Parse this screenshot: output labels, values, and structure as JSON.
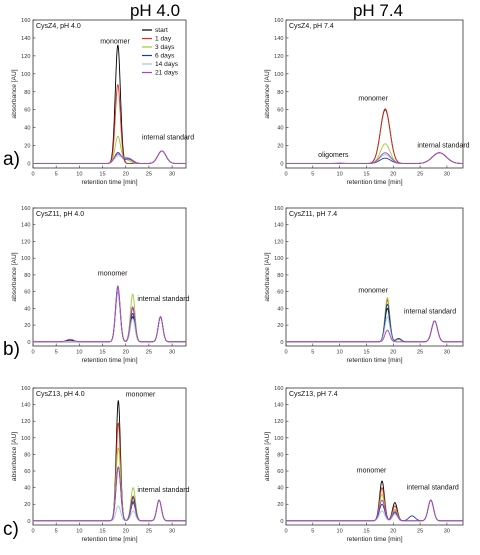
{
  "figure": {
    "column_headers": [
      "pH 4.0",
      "pH 7.4"
    ],
    "row_labels": [
      "a)",
      "b)",
      "c)"
    ]
  },
  "legend": {
    "entries": [
      {
        "name": "start",
        "color": "#000000"
      },
      {
        "name": "1 day",
        "color": "#e03020"
      },
      {
        "name": "3 days",
        "color": "#9acd32"
      },
      {
        "name": "6 days",
        "color": "#1e3a9a"
      },
      {
        "name": "14 days",
        "color": "#9fc5e8"
      },
      {
        "name": "21 days",
        "color": "#b040c0"
      }
    ]
  },
  "chart_data": [
    {
      "type": "line",
      "title": "CysZ4, pH 4.0",
      "xlabel": "retention time [min]",
      "ylabel": "absorbance [AU]",
      "xlim": [
        0,
        33
      ],
      "ylim": [
        -5,
        160
      ],
      "xticks": [
        0,
        5,
        10,
        15,
        20,
        25,
        30
      ],
      "yticks": [
        0,
        20,
        40,
        60,
        80,
        100,
        120,
        140,
        160
      ],
      "legend_position": "top-right",
      "grid": false,
      "annotations": [
        {
          "text": "monomer",
          "x": 14.5,
          "y": 134
        },
        {
          "text": "internal standard",
          "x": 23.5,
          "y": 27
        }
      ],
      "series": [
        {
          "name": "start",
          "peaks": [
            {
              "center": 18.3,
              "height": 132,
              "width": 0.55
            },
            {
              "center": 27.8,
              "height": 14,
              "width": 0.9
            }
          ]
        },
        {
          "name": "1 day",
          "peaks": [
            {
              "center": 18.3,
              "height": 88,
              "width": 0.55
            },
            {
              "center": 27.8,
              "height": 14,
              "width": 0.9
            }
          ]
        },
        {
          "name": "3 days",
          "peaks": [
            {
              "center": 18.3,
              "height": 30,
              "width": 0.6
            },
            {
              "center": 20.2,
              "height": 4,
              "width": 0.8
            },
            {
              "center": 27.8,
              "height": 14,
              "width": 0.9
            }
          ]
        },
        {
          "name": "6 days",
          "peaks": [
            {
              "center": 18.3,
              "height": 12,
              "width": 0.7
            },
            {
              "center": 20.5,
              "height": 5,
              "width": 0.9
            },
            {
              "center": 27.8,
              "height": 14,
              "width": 0.9
            }
          ]
        },
        {
          "name": "14 days",
          "peaks": [
            {
              "center": 18.3,
              "height": 8,
              "width": 0.8
            },
            {
              "center": 20.5,
              "height": 6,
              "width": 1.0
            },
            {
              "center": 27.8,
              "height": 14,
              "width": 0.9
            }
          ]
        },
        {
          "name": "21 days",
          "peaks": [
            {
              "center": 18.3,
              "height": 10,
              "width": 0.8
            },
            {
              "center": 20.5,
              "height": 6,
              "width": 1.0
            },
            {
              "center": 27.8,
              "height": 14,
              "width": 0.9
            }
          ]
        }
      ]
    },
    {
      "type": "line",
      "title": "CysZ4, pH 7.4",
      "xlabel": "retention time [min]",
      "ylabel": "absorbance [AU]",
      "xlim": [
        0,
        33
      ],
      "ylim": [
        -5,
        160
      ],
      "xticks": [
        0,
        5,
        10,
        15,
        20,
        25,
        30
      ],
      "yticks": [
        0,
        20,
        40,
        60,
        80,
        100,
        120,
        140,
        160
      ],
      "grid": false,
      "annotations": [
        {
          "text": "oligomers",
          "x": 6.0,
          "y": 7
        },
        {
          "text": "monomer",
          "x": 13.5,
          "y": 70
        },
        {
          "text": "internal standard",
          "x": 24.5,
          "y": 18
        }
      ],
      "series": [
        {
          "name": "start",
          "peaks": [
            {
              "center": 18.5,
              "height": 60,
              "width": 0.9
            },
            {
              "center": 28.6,
              "height": 12,
              "width": 1.3
            }
          ]
        },
        {
          "name": "1 day",
          "peaks": [
            {
              "center": 18.5,
              "height": 61,
              "width": 0.9
            },
            {
              "center": 28.6,
              "height": 12,
              "width": 1.3
            }
          ]
        },
        {
          "name": "3 days",
          "peaks": [
            {
              "center": 18.5,
              "height": 22,
              "width": 0.9
            },
            {
              "center": 28.6,
              "height": 12,
              "width": 1.3
            }
          ]
        },
        {
          "name": "6 days",
          "peaks": [
            {
              "center": 18.5,
              "height": 6,
              "width": 1.0
            },
            {
              "center": 28.6,
              "height": 12,
              "width": 1.3
            }
          ]
        },
        {
          "name": "14 days",
          "peaks": [
            {
              "center": 10.0,
              "height": 1,
              "width": 0.8
            },
            {
              "center": 18.5,
              "height": 10,
              "width": 1.0
            },
            {
              "center": 28.6,
              "height": 12,
              "width": 1.3
            }
          ]
        },
        {
          "name": "21 days",
          "peaks": [
            {
              "center": 18.5,
              "height": 12,
              "width": 1.0
            },
            {
              "center": 28.6,
              "height": 12,
              "width": 1.3
            }
          ]
        }
      ]
    },
    {
      "type": "line",
      "title": "CysZ11, pH 4.0",
      "xlabel": "retention time [min]",
      "ylabel": "absorbance [AU]",
      "xlim": [
        0,
        33
      ],
      "ylim": [
        -5,
        160
      ],
      "xticks": [
        0,
        5,
        10,
        15,
        20,
        25,
        30
      ],
      "yticks": [
        0,
        20,
        40,
        60,
        80,
        100,
        120,
        140,
        160
      ],
      "grid": false,
      "annotations": [
        {
          "text": "monomer",
          "x": 14.0,
          "y": 79
        },
        {
          "text": "internal standard",
          "x": 22.5,
          "y": 49
        }
      ],
      "series": [
        {
          "name": "start",
          "peaks": [
            {
              "center": 8.0,
              "height": 2,
              "width": 0.8
            },
            {
              "center": 18.3,
              "height": 63,
              "width": 0.5
            },
            {
              "center": 21.5,
              "height": 30,
              "width": 0.5
            },
            {
              "center": 27.5,
              "height": 30,
              "width": 0.5
            }
          ]
        },
        {
          "name": "1 day",
          "peaks": [
            {
              "center": 18.3,
              "height": 65,
              "width": 0.5
            },
            {
              "center": 21.5,
              "height": 40,
              "width": 0.5
            },
            {
              "center": 27.5,
              "height": 30,
              "width": 0.5
            }
          ]
        },
        {
          "name": "3 days",
          "peaks": [
            {
              "center": 18.3,
              "height": 66,
              "width": 0.5
            },
            {
              "center": 21.5,
              "height": 57,
              "width": 0.5
            },
            {
              "center": 27.5,
              "height": 30,
              "width": 0.5
            }
          ]
        },
        {
          "name": "6 days",
          "peaks": [
            {
              "center": 18.3,
              "height": 60,
              "width": 0.5
            },
            {
              "center": 21.5,
              "height": 34,
              "width": 0.5
            },
            {
              "center": 27.5,
              "height": 30,
              "width": 0.5
            }
          ]
        },
        {
          "name": "14 days",
          "peaks": [
            {
              "center": 18.3,
              "height": 62,
              "width": 0.5
            },
            {
              "center": 21.5,
              "height": 28,
              "width": 0.5
            },
            {
              "center": 27.5,
              "height": 30,
              "width": 0.5
            }
          ]
        },
        {
          "name": "21 days",
          "peaks": [
            {
              "center": 8.0,
              "height": 3,
              "width": 0.8
            },
            {
              "center": 18.3,
              "height": 67,
              "width": 0.5
            },
            {
              "center": 21.5,
              "height": 42,
              "width": 0.5
            },
            {
              "center": 27.5,
              "height": 30,
              "width": 0.5
            }
          ]
        }
      ]
    },
    {
      "type": "line",
      "title": "CysZ11, pH 7.4",
      "xlabel": "retention time [min]",
      "ylabel": "absorbance [AU]",
      "xlim": [
        0,
        33
      ],
      "ylim": [
        -5,
        160
      ],
      "xticks": [
        0,
        5,
        10,
        15,
        20,
        25,
        30
      ],
      "yticks": [
        0,
        20,
        40,
        60,
        80,
        100,
        120,
        140,
        160
      ],
      "grid": false,
      "annotations": [
        {
          "text": "monomer",
          "x": 13.5,
          "y": 59
        },
        {
          "text": "internal standard",
          "x": 22.0,
          "y": 34
        }
      ],
      "series": [
        {
          "name": "start",
          "peaks": [
            {
              "center": 18.9,
              "height": 40,
              "width": 0.45
            },
            {
              "center": 21.0,
              "height": 3,
              "width": 0.5
            },
            {
              "center": 27.7,
              "height": 25,
              "width": 0.55
            }
          ]
        },
        {
          "name": "1 day",
          "peaks": [
            {
              "center": 18.9,
              "height": 50,
              "width": 0.45
            },
            {
              "center": 21.0,
              "height": 3,
              "width": 0.5
            },
            {
              "center": 27.7,
              "height": 25,
              "width": 0.55
            }
          ]
        },
        {
          "name": "3 days",
          "peaks": [
            {
              "center": 18.9,
              "height": 53,
              "width": 0.45
            },
            {
              "center": 21.0,
              "height": 3,
              "width": 0.5
            },
            {
              "center": 27.7,
              "height": 25,
              "width": 0.55
            }
          ]
        },
        {
          "name": "6 days",
          "peaks": [
            {
              "center": 18.9,
              "height": 45,
              "width": 0.45
            },
            {
              "center": 21.0,
              "height": 4,
              "width": 0.5
            },
            {
              "center": 27.7,
              "height": 25,
              "width": 0.55
            }
          ]
        },
        {
          "name": "14 days",
          "peaks": [
            {
              "center": 18.9,
              "height": 30,
              "width": 0.45
            },
            {
              "center": 27.7,
              "height": 25,
              "width": 0.55
            }
          ]
        },
        {
          "name": "21 days",
          "peaks": [
            {
              "center": 18.9,
              "height": 14,
              "width": 0.45
            },
            {
              "center": 27.7,
              "height": 25,
              "width": 0.55
            }
          ]
        }
      ]
    },
    {
      "type": "line",
      "title": "CysZ13, pH 4.0",
      "xlabel": "retention time [min]",
      "ylabel": "absorbance [AU]",
      "xlim": [
        0,
        33
      ],
      "ylim": [
        -5,
        160
      ],
      "xticks": [
        0,
        5,
        10,
        15,
        20,
        25,
        30
      ],
      "yticks": [
        0,
        20,
        40,
        60,
        80,
        100,
        120,
        140,
        160
      ],
      "grid": false,
      "annotations": [
        {
          "text": "monomer",
          "x": 20.0,
          "y": 150
        },
        {
          "text": "internal standard",
          "x": 22.5,
          "y": 35
        }
      ],
      "series": [
        {
          "name": "start",
          "peaks": [
            {
              "center": 18.4,
              "height": 145,
              "width": 0.45
            },
            {
              "center": 21.6,
              "height": 22,
              "width": 0.5
            },
            {
              "center": 27.2,
              "height": 25,
              "width": 0.5
            }
          ]
        },
        {
          "name": "1 day",
          "peaks": [
            {
              "center": 18.4,
              "height": 118,
              "width": 0.45
            },
            {
              "center": 21.6,
              "height": 30,
              "width": 0.5
            },
            {
              "center": 27.2,
              "height": 25,
              "width": 0.5
            }
          ]
        },
        {
          "name": "3 days",
          "peaks": [
            {
              "center": 18.4,
              "height": 88,
              "width": 0.5
            },
            {
              "center": 21.6,
              "height": 40,
              "width": 0.5
            },
            {
              "center": 27.2,
              "height": 25,
              "width": 0.5
            }
          ]
        },
        {
          "name": "6 days",
          "peaks": [
            {
              "center": 18.4,
              "height": 65,
              "width": 0.5
            },
            {
              "center": 21.6,
              "height": 28,
              "width": 0.5
            },
            {
              "center": 27.2,
              "height": 25,
              "width": 0.5
            }
          ]
        },
        {
          "name": "14 days",
          "peaks": [
            {
              "center": 18.4,
              "height": 18,
              "width": 0.5
            },
            {
              "center": 21.6,
              "height": 12,
              "width": 0.5
            },
            {
              "center": 27.2,
              "height": 25,
              "width": 0.5
            }
          ]
        },
        {
          "name": "21 days",
          "peaks": [
            {
              "center": 18.4,
              "height": 65,
              "width": 0.5
            },
            {
              "center": 21.6,
              "height": 24,
              "width": 0.5
            },
            {
              "center": 27.2,
              "height": 25,
              "width": 0.5
            }
          ]
        }
      ]
    },
    {
      "type": "line",
      "title": "CysZ13, pH 7.4",
      "xlabel": "retention time [min]",
      "ylabel": "absorbance [AU]",
      "xlim": [
        0,
        33
      ],
      "ylim": [
        -5,
        160
      ],
      "xticks": [
        0,
        5,
        10,
        15,
        20,
        25,
        30
      ],
      "yticks": [
        0,
        20,
        40,
        60,
        80,
        100,
        120,
        140,
        160
      ],
      "grid": false,
      "annotations": [
        {
          "text": "monomer",
          "x": 13.2,
          "y": 58
        },
        {
          "text": "internal standard",
          "x": 22.5,
          "y": 38
        }
      ],
      "series": [
        {
          "name": "start",
          "peaks": [
            {
              "center": 17.9,
              "height": 48,
              "width": 0.45
            },
            {
              "center": 20.3,
              "height": 22,
              "width": 0.45
            },
            {
              "center": 27.0,
              "height": 25,
              "width": 0.5
            }
          ]
        },
        {
          "name": "1 day",
          "peaks": [
            {
              "center": 17.9,
              "height": 40,
              "width": 0.45
            },
            {
              "center": 20.3,
              "height": 18,
              "width": 0.45
            },
            {
              "center": 27.0,
              "height": 25,
              "width": 0.5
            }
          ]
        },
        {
          "name": "3 days",
          "peaks": [
            {
              "center": 17.9,
              "height": 32,
              "width": 0.45
            },
            {
              "center": 20.3,
              "height": 14,
              "width": 0.45
            },
            {
              "center": 27.0,
              "height": 25,
              "width": 0.5
            }
          ]
        },
        {
          "name": "6 days",
          "peaks": [
            {
              "center": 17.9,
              "height": 20,
              "width": 0.5
            },
            {
              "center": 20.3,
              "height": 10,
              "width": 0.45
            },
            {
              "center": 23.5,
              "height": 6,
              "width": 0.6
            },
            {
              "center": 27.0,
              "height": 25,
              "width": 0.5
            }
          ]
        },
        {
          "name": "14 days",
          "peaks": [
            {
              "center": 17.9,
              "height": 12,
              "width": 0.5
            },
            {
              "center": 20.3,
              "height": 8,
              "width": 0.45
            },
            {
              "center": 27.0,
              "height": 25,
              "width": 0.5
            }
          ]
        },
        {
          "name": "21 days",
          "peaks": [
            {
              "center": 17.9,
              "height": 25,
              "width": 0.5
            },
            {
              "center": 20.3,
              "height": 12,
              "width": 0.45
            },
            {
              "center": 27.0,
              "height": 25,
              "width": 0.5
            }
          ]
        }
      ]
    }
  ]
}
